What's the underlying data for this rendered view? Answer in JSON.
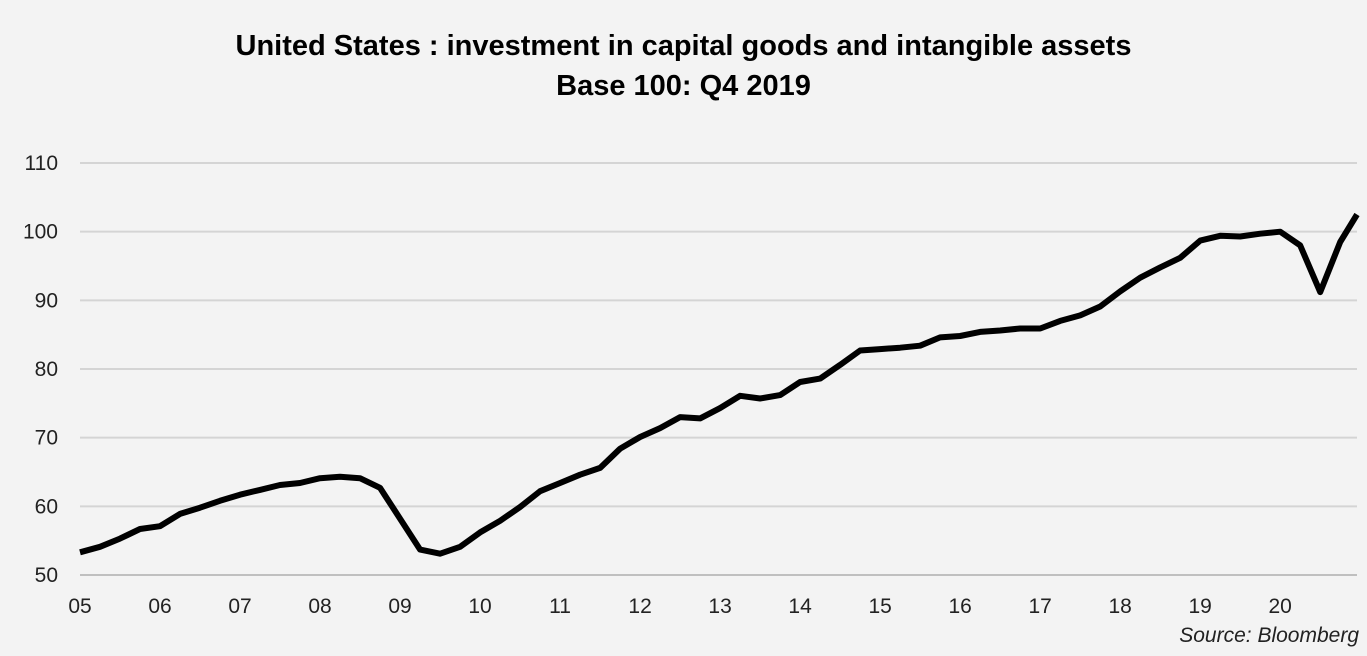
{
  "chart_data": {
    "type": "line",
    "title": "United States : investment in capital goods and intangible assets",
    "subtitle": "Base 100: Q4 2019",
    "source": "Source: Bloomberg",
    "ylim": [
      50,
      110
    ],
    "yticks": [
      50,
      60,
      70,
      80,
      90,
      100,
      110
    ],
    "xlim": [
      2005.0,
      2020.96
    ],
    "xticks": [
      {
        "value": 2005,
        "label": "05"
      },
      {
        "value": 2006,
        "label": "06"
      },
      {
        "value": 2007,
        "label": "07"
      },
      {
        "value": 2008,
        "label": "08"
      },
      {
        "value": 2009,
        "label": "09"
      },
      {
        "value": 2010,
        "label": "10"
      },
      {
        "value": 2011,
        "label": "11"
      },
      {
        "value": 2012,
        "label": "12"
      },
      {
        "value": 2013,
        "label": "13"
      },
      {
        "value": 2014,
        "label": "14"
      },
      {
        "value": 2015,
        "label": "15"
      },
      {
        "value": 2016,
        "label": "16"
      },
      {
        "value": 2017,
        "label": "17"
      },
      {
        "value": 2018,
        "label": "18"
      },
      {
        "value": 2019,
        "label": "19"
      },
      {
        "value": 2020,
        "label": "20"
      }
    ],
    "grid": true,
    "line_color": "#000000",
    "series": [
      {
        "x": [
          2005.0,
          2005.25,
          2005.5,
          2005.75,
          2006.0,
          2006.25,
          2006.5,
          2006.75,
          2007.0,
          2007.25,
          2007.5,
          2007.75,
          2008.0,
          2008.25,
          2008.5,
          2008.75,
          2009.0,
          2009.25,
          2009.5,
          2009.75,
          2010.0,
          2010.25,
          2010.5,
          2010.75,
          2011.0,
          2011.25,
          2011.5,
          2011.75,
          2012.0,
          2012.25,
          2012.5,
          2012.75,
          2013.0,
          2013.25,
          2013.5,
          2013.75,
          2014.0,
          2014.25,
          2014.5,
          2014.75,
          2015.0,
          2015.25,
          2015.5,
          2015.75,
          2016.0,
          2016.25,
          2016.5,
          2016.75,
          2017.0,
          2017.25,
          2017.5,
          2017.75,
          2018.0,
          2018.25,
          2018.5,
          2018.75,
          2019.0,
          2019.25,
          2019.5,
          2019.75,
          2020.0,
          2020.25,
          2020.5,
          2020.75,
          2020.96
        ],
        "y": [
          53.3,
          54.1,
          55.3,
          56.7,
          57.1,
          58.9,
          59.8,
          60.8,
          61.7,
          62.4,
          63.1,
          63.4,
          64.1,
          64.3,
          64.1,
          62.7,
          58.2,
          53.7,
          53.1,
          54.1,
          56.2,
          57.9,
          59.9,
          62.2,
          63.4,
          64.6,
          65.6,
          68.4,
          70.1,
          71.4,
          73.0,
          72.8,
          74.3,
          76.1,
          75.7,
          76.2,
          78.1,
          78.6,
          80.6,
          82.7,
          82.9,
          83.1,
          83.4,
          84.6,
          84.8,
          85.4,
          85.6,
          85.9,
          85.9,
          87.0,
          87.8,
          89.1,
          91.3,
          93.3,
          94.8,
          96.2,
          98.7,
          99.4,
          99.3,
          99.7,
          100.0,
          98.0,
          91.2,
          98.5,
          102.5
        ]
      }
    ]
  }
}
